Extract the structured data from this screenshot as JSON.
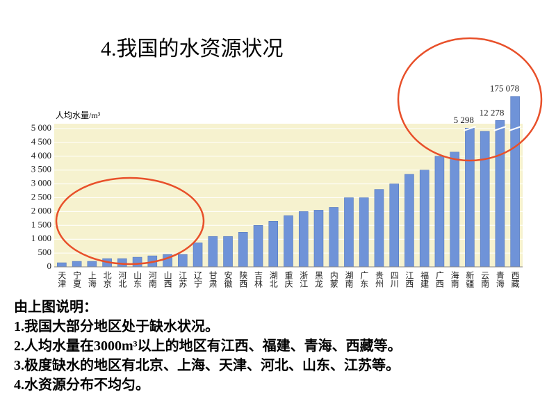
{
  "title": "4.我国的水资源状况",
  "chart_data": {
    "type": "bar",
    "y_label": "人均水量/m³",
    "categories": [
      "天津",
      "宁夏",
      "上海",
      "北京",
      "河北",
      "山东",
      "河南",
      "山西",
      "江苏",
      "辽宁",
      "甘肃",
      "安徽",
      "陕西",
      "吉林",
      "湖北",
      "重庆",
      "浙江",
      "黑龙",
      "内蒙",
      "湖南",
      "广东",
      "贵州",
      "四川",
      "江西",
      "福建",
      "广西",
      "海南",
      "新疆",
      "云南",
      "青海",
      "西藏"
    ],
    "values": [
      150,
      200,
      200,
      300,
      300,
      350,
      400,
      450,
      450,
      870,
      1100,
      1100,
      1250,
      1500,
      1650,
      1850,
      2000,
      2050,
      2150,
      2500,
      2500,
      2800,
      3000,
      3350,
      3500,
      4000,
      4150,
      5298,
      4900,
      12278,
      175078
    ],
    "value_labels": [
      null,
      null,
      null,
      null,
      null,
      null,
      null,
      null,
      null,
      null,
      null,
      null,
      null,
      null,
      null,
      null,
      null,
      null,
      null,
      null,
      null,
      null,
      null,
      null,
      null,
      null,
      null,
      "5 298",
      null,
      "12 278",
      "175 078"
    ],
    "color": "#6f93d8",
    "ylim": [
      0,
      5000
    ],
    "yticks": [
      0,
      500,
      {
        "value": 1000,
        "label": "1 000"
      },
      {
        "value": 1500,
        "label": "1 500"
      },
      {
        "value": 2000,
        "label": "2 000"
      },
      {
        "value": 2500,
        "label": "2 500"
      },
      {
        "value": 3000,
        "label": "3 000"
      },
      {
        "value": 3500,
        "label": "3 500"
      },
      {
        "value": 4000,
        "label": "4 000"
      },
      {
        "value": 4500,
        "label": "4 500"
      },
      {
        "value": 5000,
        "label": "5 000"
      }
    ],
    "grid": true
  },
  "notes": {
    "heading": "由上图说明：",
    "lines": [
      "1.我国大部分地区处于缺水状况。",
      "2.人均水量在3000m³以上的地区有江西、福建、青海、西藏等。",
      "3.极度缺水的地区有北京、上海、天津、河北、山东、江苏等。",
      "4.水资源分布不均匀。"
    ]
  }
}
